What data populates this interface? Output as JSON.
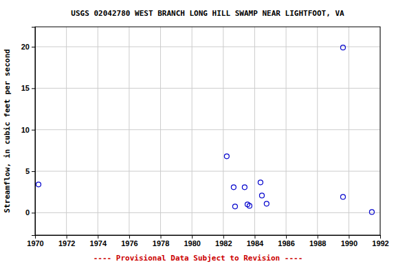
{
  "chart_data": {
    "type": "scatter",
    "title": "USGS 02042780 WEST BRANCH LONG HILL SWAMP NEAR LIGHTFOOT, VA",
    "y_label": "Streamflow, in cubic feet per second",
    "annotations": [
      "---- Provisional Data Subject to Revision ----"
    ],
    "x": [
      1970.22,
      1982.22,
      1982.66,
      1982.75,
      1983.36,
      1983.54,
      1983.67,
      1984.37,
      1984.46,
      1984.76,
      1989.63,
      1989.63,
      1991.47
    ],
    "values": [
      3.4,
      6.8,
      3.07,
      0.75,
      3.07,
      1.0,
      0.83,
      3.65,
      2.07,
      1.08,
      19.9,
      1.9,
      0.08
    ],
    "color": "#0000cc",
    "marker": "open-circle",
    "xlim": [
      1970,
      1992
    ],
    "xticks": [
      1970,
      1972,
      1974,
      1976,
      1978,
      1980,
      1982,
      1984,
      1986,
      1988,
      1990,
      1992
    ],
    "ylim": [
      -2.7,
      22.4
    ],
    "yticks": [
      0,
      5,
      10,
      15,
      20
    ],
    "grid": true
  }
}
